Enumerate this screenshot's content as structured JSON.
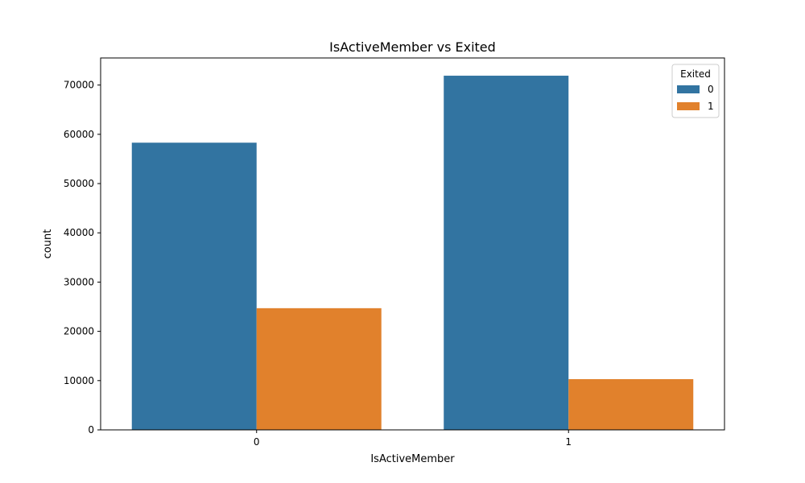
{
  "chart_data": {
    "type": "bar",
    "title": "IsActiveMember vs Exited",
    "xlabel": "IsActiveMember",
    "ylabel": "count",
    "categories": [
      "0",
      "1"
    ],
    "series": [
      {
        "name": "0",
        "color": "#3274a1",
        "values": [
          58300,
          71900
        ]
      },
      {
        "name": "1",
        "color": "#e1812c",
        "values": [
          24700,
          10300
        ]
      }
    ],
    "ylim": [
      0,
      75500
    ],
    "yticks": [
      0,
      10000,
      20000,
      30000,
      40000,
      50000,
      60000,
      70000
    ],
    "legend": {
      "title": "Exited",
      "placement": "top-right"
    },
    "grid": false
  }
}
